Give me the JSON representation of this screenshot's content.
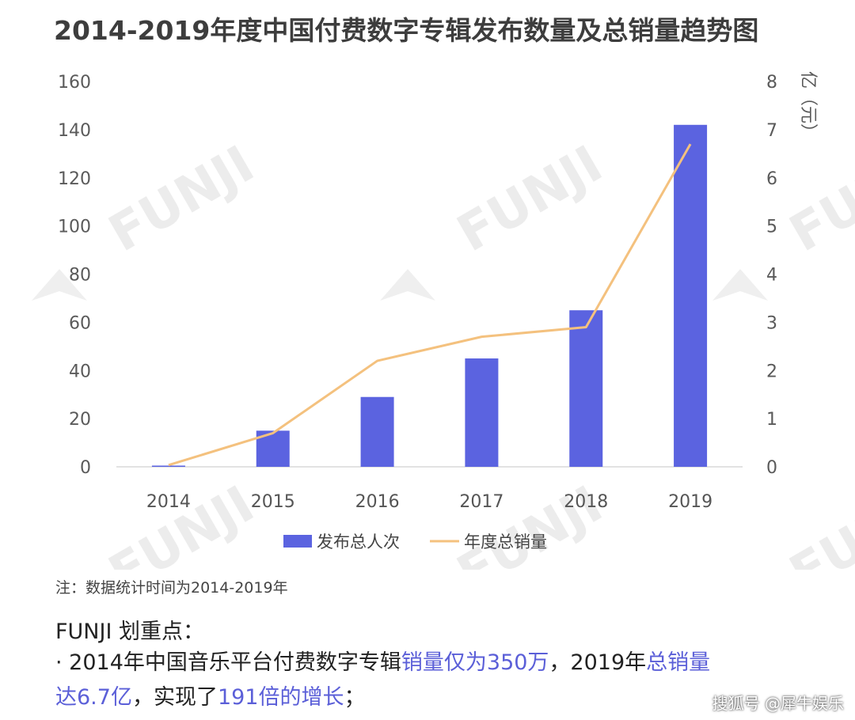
{
  "title": "2014-2019年度中国付费数字专辑发布数量及总销量趋势图",
  "chart_data": {
    "type": "bar+line",
    "categories": [
      "2014",
      "2015",
      "2016",
      "2017",
      "2018",
      "2019"
    ],
    "series": [
      {
        "name": "发布总人次",
        "type": "bar",
        "axis": "left",
        "color": "#5b63e0",
        "values": [
          0.5,
          15,
          29,
          45,
          65,
          142
        ]
      },
      {
        "name": "年度总销量",
        "type": "line",
        "axis": "right",
        "color": "#f4c17e",
        "values": [
          0.035,
          0.7,
          2.2,
          2.7,
          2.9,
          6.7
        ]
      }
    ],
    "y_left": {
      "ylim": [
        0,
        160
      ],
      "ticks": [
        "0",
        "20",
        "40",
        "60",
        "80",
        "100",
        "120",
        "140",
        "160"
      ]
    },
    "y_right": {
      "ylim": [
        0,
        8
      ],
      "ticks": [
        "0",
        "1",
        "2",
        "3",
        "4",
        "5",
        "6",
        "7",
        "8"
      ],
      "label": "亿（元）"
    },
    "legend_position": "bottom",
    "grid": false
  },
  "watermark": "FUNJI",
  "note": "注：数据统计时间为2014-2019年",
  "key_points": {
    "heading": "FUNJI 划重点：",
    "line1": [
      {
        "text": "· 2014年中国音乐平台付费数字专辑",
        "hl": false
      },
      {
        "text": "销量仅为350万",
        "hl": true
      },
      {
        "text": "，2019年",
        "hl": false
      },
      {
        "text": "总销量",
        "hl": true
      }
    ],
    "line2": [
      {
        "text": "达6.7亿",
        "hl": true
      },
      {
        "text": "，实现了",
        "hl": false
      },
      {
        "text": "191倍的增长",
        "hl": true
      },
      {
        "text": "；",
        "hl": false
      }
    ]
  },
  "footer": "搜狐号 @犀牛娱乐"
}
